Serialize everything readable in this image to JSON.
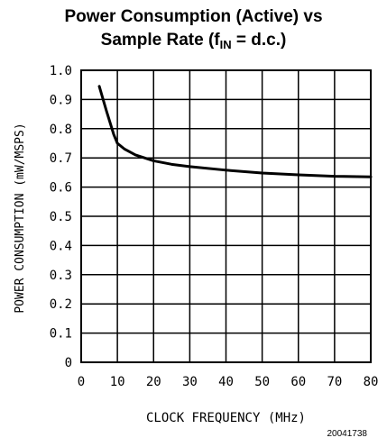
{
  "title_main": "Power Consumption (Active) vs",
  "title_line2_prefix": "Sample Rate (f",
  "title_line2_sub": "IN",
  "title_line2_suffix": " = d.c.)",
  "doc_number": "20041738",
  "chart_data": {
    "type": "line",
    "xlabel": "CLOCK FREQUENCY (MHz)",
    "ylabel": "POWER CONSUMPTION (mW/MSPS)",
    "xlim": [
      0,
      80
    ],
    "ylim": [
      0,
      1.0
    ],
    "x_ticks": [
      0,
      10,
      20,
      30,
      40,
      50,
      60,
      70,
      80
    ],
    "y_ticks": [
      0,
      0.1,
      0.2,
      0.3,
      0.4,
      0.5,
      0.6,
      0.7,
      0.8,
      0.9,
      1.0
    ],
    "x_tick_labels": [
      "0",
      "10",
      "20",
      "30",
      "40",
      "50",
      "60",
      "70",
      "80"
    ],
    "y_tick_labels": [
      "0",
      "0.1",
      "0.2",
      "0.3",
      "0.4",
      "0.5",
      "0.6",
      "0.7",
      "0.8",
      "0.9",
      "1.0"
    ],
    "grid": true,
    "series": [
      {
        "x": [
          5,
          7,
          9,
          10,
          12,
          15,
          20,
          25,
          30,
          40,
          50,
          60,
          70,
          80
        ],
        "y": [
          0.945,
          0.86,
          0.78,
          0.75,
          0.73,
          0.71,
          0.69,
          0.678,
          0.67,
          0.658,
          0.648,
          0.642,
          0.637,
          0.635
        ]
      }
    ]
  }
}
